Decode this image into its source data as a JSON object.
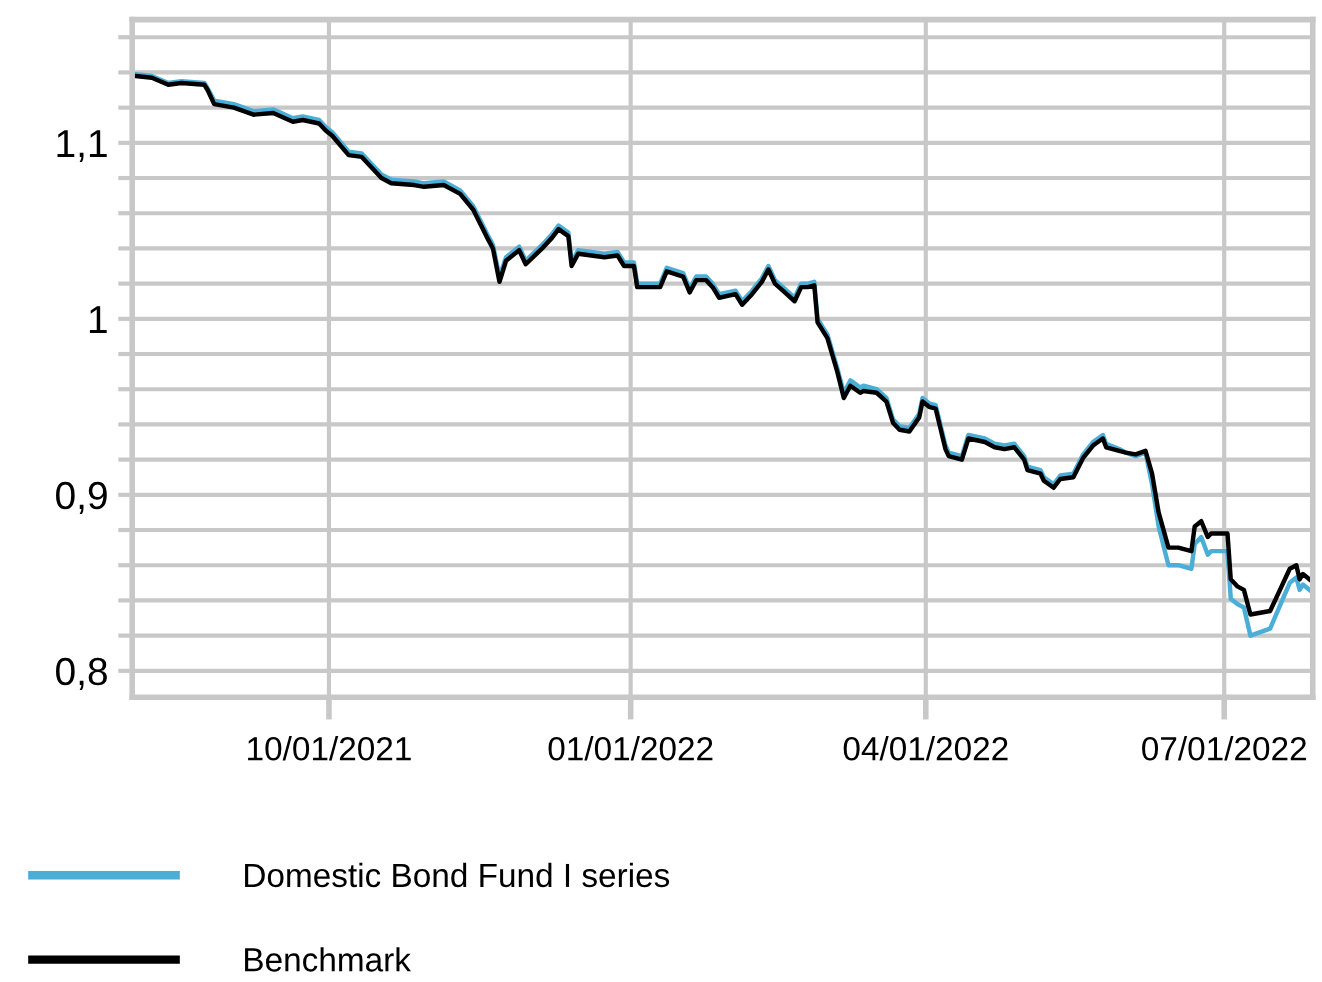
{
  "chart_data": {
    "type": "line",
    "x": [
      "2021-08-03",
      "2021-08-08",
      "2021-08-13",
      "2021-08-17",
      "2021-08-24",
      "2021-08-25",
      "2021-08-27",
      "2021-09-02",
      "2021-09-08",
      "2021-09-14",
      "2021-09-20",
      "2021-09-23",
      "2021-09-28",
      "2021-09-30",
      "2021-10-02",
      "2021-10-07",
      "2021-10-11",
      "2021-10-17",
      "2021-10-20",
      "2021-10-27",
      "2021-10-30",
      "2021-11-05",
      "2021-11-10",
      "2021-11-14",
      "2021-11-18",
      "2021-11-20",
      "2021-11-22",
      "2021-11-24",
      "2021-11-28",
      "2021-11-30",
      "2021-12-05",
      "2021-12-08",
      "2021-12-10",
      "2021-12-13",
      "2021-12-14",
      "2021-12-16",
      "2021-12-24",
      "2021-12-28",
      "2021-12-30",
      "2022-01-02",
      "2022-01-03",
      "2022-01-10",
      "2022-01-12",
      "2022-01-17",
      "2022-01-19",
      "2022-01-21",
      "2022-01-24",
      "2022-01-26",
      "2022-01-28",
      "2022-02-02",
      "2022-02-04",
      "2022-02-07",
      "2022-02-10",
      "2022-02-12",
      "2022-02-14",
      "2022-02-17",
      "2022-02-20",
      "2022-02-22",
      "2022-02-24",
      "2022-02-26",
      "2022-02-27",
      "2022-03-02",
      "2022-03-05",
      "2022-03-07",
      "2022-03-09",
      "2022-03-12",
      "2022-03-13",
      "2022-03-17",
      "2022-03-20",
      "2022-03-22",
      "2022-03-24",
      "2022-03-27",
      "2022-03-30",
      "2022-03-31",
      "2022-04-02",
      "2022-04-04",
      "2022-04-07",
      "2022-04-08",
      "2022-04-12",
      "2022-04-14",
      "2022-04-19",
      "2022-04-22",
      "2022-04-25",
      "2022-04-28",
      "2022-05-01",
      "2022-05-02",
      "2022-05-06",
      "2022-05-07",
      "2022-05-10",
      "2022-05-12",
      "2022-05-16",
      "2022-05-19",
      "2022-05-22",
      "2022-05-25",
      "2022-05-26",
      "2022-05-30",
      "2022-06-01",
      "2022-06-04",
      "2022-06-07",
      "2022-06-09",
      "2022-06-11",
      "2022-06-14",
      "2022-06-17",
      "2022-06-21",
      "2022-06-22",
      "2022-06-24",
      "2022-06-26",
      "2022-06-27",
      "2022-07-02",
      "2022-07-03",
      "2022-07-05",
      "2022-07-07",
      "2022-07-09",
      "2022-07-12",
      "2022-07-15",
      "2022-07-18",
      "2022-07-21",
      "2022-07-23",
      "2022-07-24",
      "2022-07-25",
      "2022-07-27"
    ],
    "series": [
      {
        "name": "Domestic Bond Fund I series",
        "color": "#4aaed6",
        "values": [
          1.139,
          1.138,
          1.134,
          1.135,
          1.134,
          1.131,
          1.124,
          1.122,
          1.118,
          1.119,
          1.114,
          1.115,
          1.113,
          1.109,
          1.106,
          1.095,
          1.094,
          1.082,
          1.079,
          1.078,
          1.077,
          1.078,
          1.073,
          1.064,
          1.049,
          1.042,
          1.024,
          1.035,
          1.041,
          1.033,
          1.042,
          1.048,
          1.053,
          1.049,
          1.032,
          1.039,
          1.037,
          1.038,
          1.032,
          1.032,
          1.02,
          1.02,
          1.029,
          1.026,
          1.017,
          1.024,
          1.024,
          1.02,
          1.014,
          1.016,
          1.01,
          1.016,
          1.023,
          1.03,
          1.022,
          1.017,
          1.012,
          1.02,
          1.02,
          1.021,
          1.0,
          0.991,
          0.972,
          0.958,
          0.965,
          0.961,
          0.962,
          0.96,
          0.955,
          0.943,
          0.939,
          0.938,
          0.946,
          0.955,
          0.952,
          0.951,
          0.928,
          0.924,
          0.922,
          0.934,
          0.932,
          0.929,
          0.928,
          0.929,
          0.922,
          0.916,
          0.914,
          0.91,
          0.906,
          0.911,
          0.912,
          0.923,
          0.93,
          0.934,
          0.929,
          0.926,
          0.924,
          0.922,
          0.924,
          0.906,
          0.882,
          0.86,
          0.86,
          0.858,
          0.872,
          0.876,
          0.866,
          0.868,
          0.868,
          0.841,
          0.838,
          0.836,
          0.82,
          0.822,
          0.824,
          0.837,
          0.85,
          0.853,
          0.846,
          0.849,
          0.846
        ]
      },
      {
        "name": "Benchmark",
        "color": "#000000",
        "values": [
          1.138,
          1.137,
          1.133,
          1.134,
          1.133,
          1.13,
          1.122,
          1.12,
          1.116,
          1.117,
          1.112,
          1.113,
          1.111,
          1.107,
          1.104,
          1.093,
          1.092,
          1.08,
          1.077,
          1.076,
          1.075,
          1.076,
          1.071,
          1.062,
          1.047,
          1.04,
          1.021,
          1.033,
          1.039,
          1.031,
          1.04,
          1.046,
          1.051,
          1.047,
          1.03,
          1.037,
          1.035,
          1.036,
          1.03,
          1.03,
          1.018,
          1.018,
          1.027,
          1.024,
          1.015,
          1.022,
          1.022,
          1.018,
          1.012,
          1.014,
          1.008,
          1.014,
          1.021,
          1.028,
          1.02,
          1.015,
          1.01,
          1.018,
          1.018,
          1.019,
          0.998,
          0.989,
          0.97,
          0.955,
          0.962,
          0.958,
          0.959,
          0.958,
          0.953,
          0.941,
          0.937,
          0.936,
          0.944,
          0.953,
          0.95,
          0.949,
          0.926,
          0.922,
          0.92,
          0.932,
          0.93,
          0.927,
          0.926,
          0.927,
          0.92,
          0.914,
          0.912,
          0.908,
          0.904,
          0.909,
          0.91,
          0.921,
          0.928,
          0.932,
          0.927,
          0.925,
          0.924,
          0.923,
          0.925,
          0.912,
          0.89,
          0.87,
          0.87,
          0.868,
          0.882,
          0.885,
          0.876,
          0.878,
          0.878,
          0.852,
          0.848,
          0.846,
          0.832,
          0.833,
          0.834,
          0.846,
          0.858,
          0.86,
          0.852,
          0.855,
          0.852
        ]
      }
    ],
    "xlim": [
      "2021-08-02",
      "2022-07-28"
    ],
    "xticks": [
      {
        "value": "2021-10-01",
        "label": "10/01/2021"
      },
      {
        "value": "2022-01-01",
        "label": "01/01/2022"
      },
      {
        "value": "2022-04-01",
        "label": "04/01/2022"
      },
      {
        "value": "2022-07-01",
        "label": "07/01/2022"
      }
    ],
    "ylim": [
      0.785,
      1.17
    ],
    "yticks": [
      {
        "value": 0.8,
        "label": "0,8"
      },
      {
        "value": 0.82,
        "label": null
      },
      {
        "value": 0.84,
        "label": null
      },
      {
        "value": 0.86,
        "label": null
      },
      {
        "value": 0.88,
        "label": null
      },
      {
        "value": 0.9,
        "label": "0,9"
      },
      {
        "value": 0.92,
        "label": null
      },
      {
        "value": 0.94,
        "label": null
      },
      {
        "value": 0.96,
        "label": null
      },
      {
        "value": 0.98,
        "label": null
      },
      {
        "value": 1.0,
        "label": "1"
      },
      {
        "value": 1.02,
        "label": null
      },
      {
        "value": 1.04,
        "label": null
      },
      {
        "value": 1.06,
        "label": null
      },
      {
        "value": 1.08,
        "label": null
      },
      {
        "value": 1.1,
        "label": "1,1"
      },
      {
        "value": 1.12,
        "label": null
      },
      {
        "value": 1.14,
        "label": null
      },
      {
        "value": 1.16,
        "label": null
      }
    ],
    "grid": true,
    "legend": "bottom",
    "line_style": "solid",
    "marker": "none"
  }
}
